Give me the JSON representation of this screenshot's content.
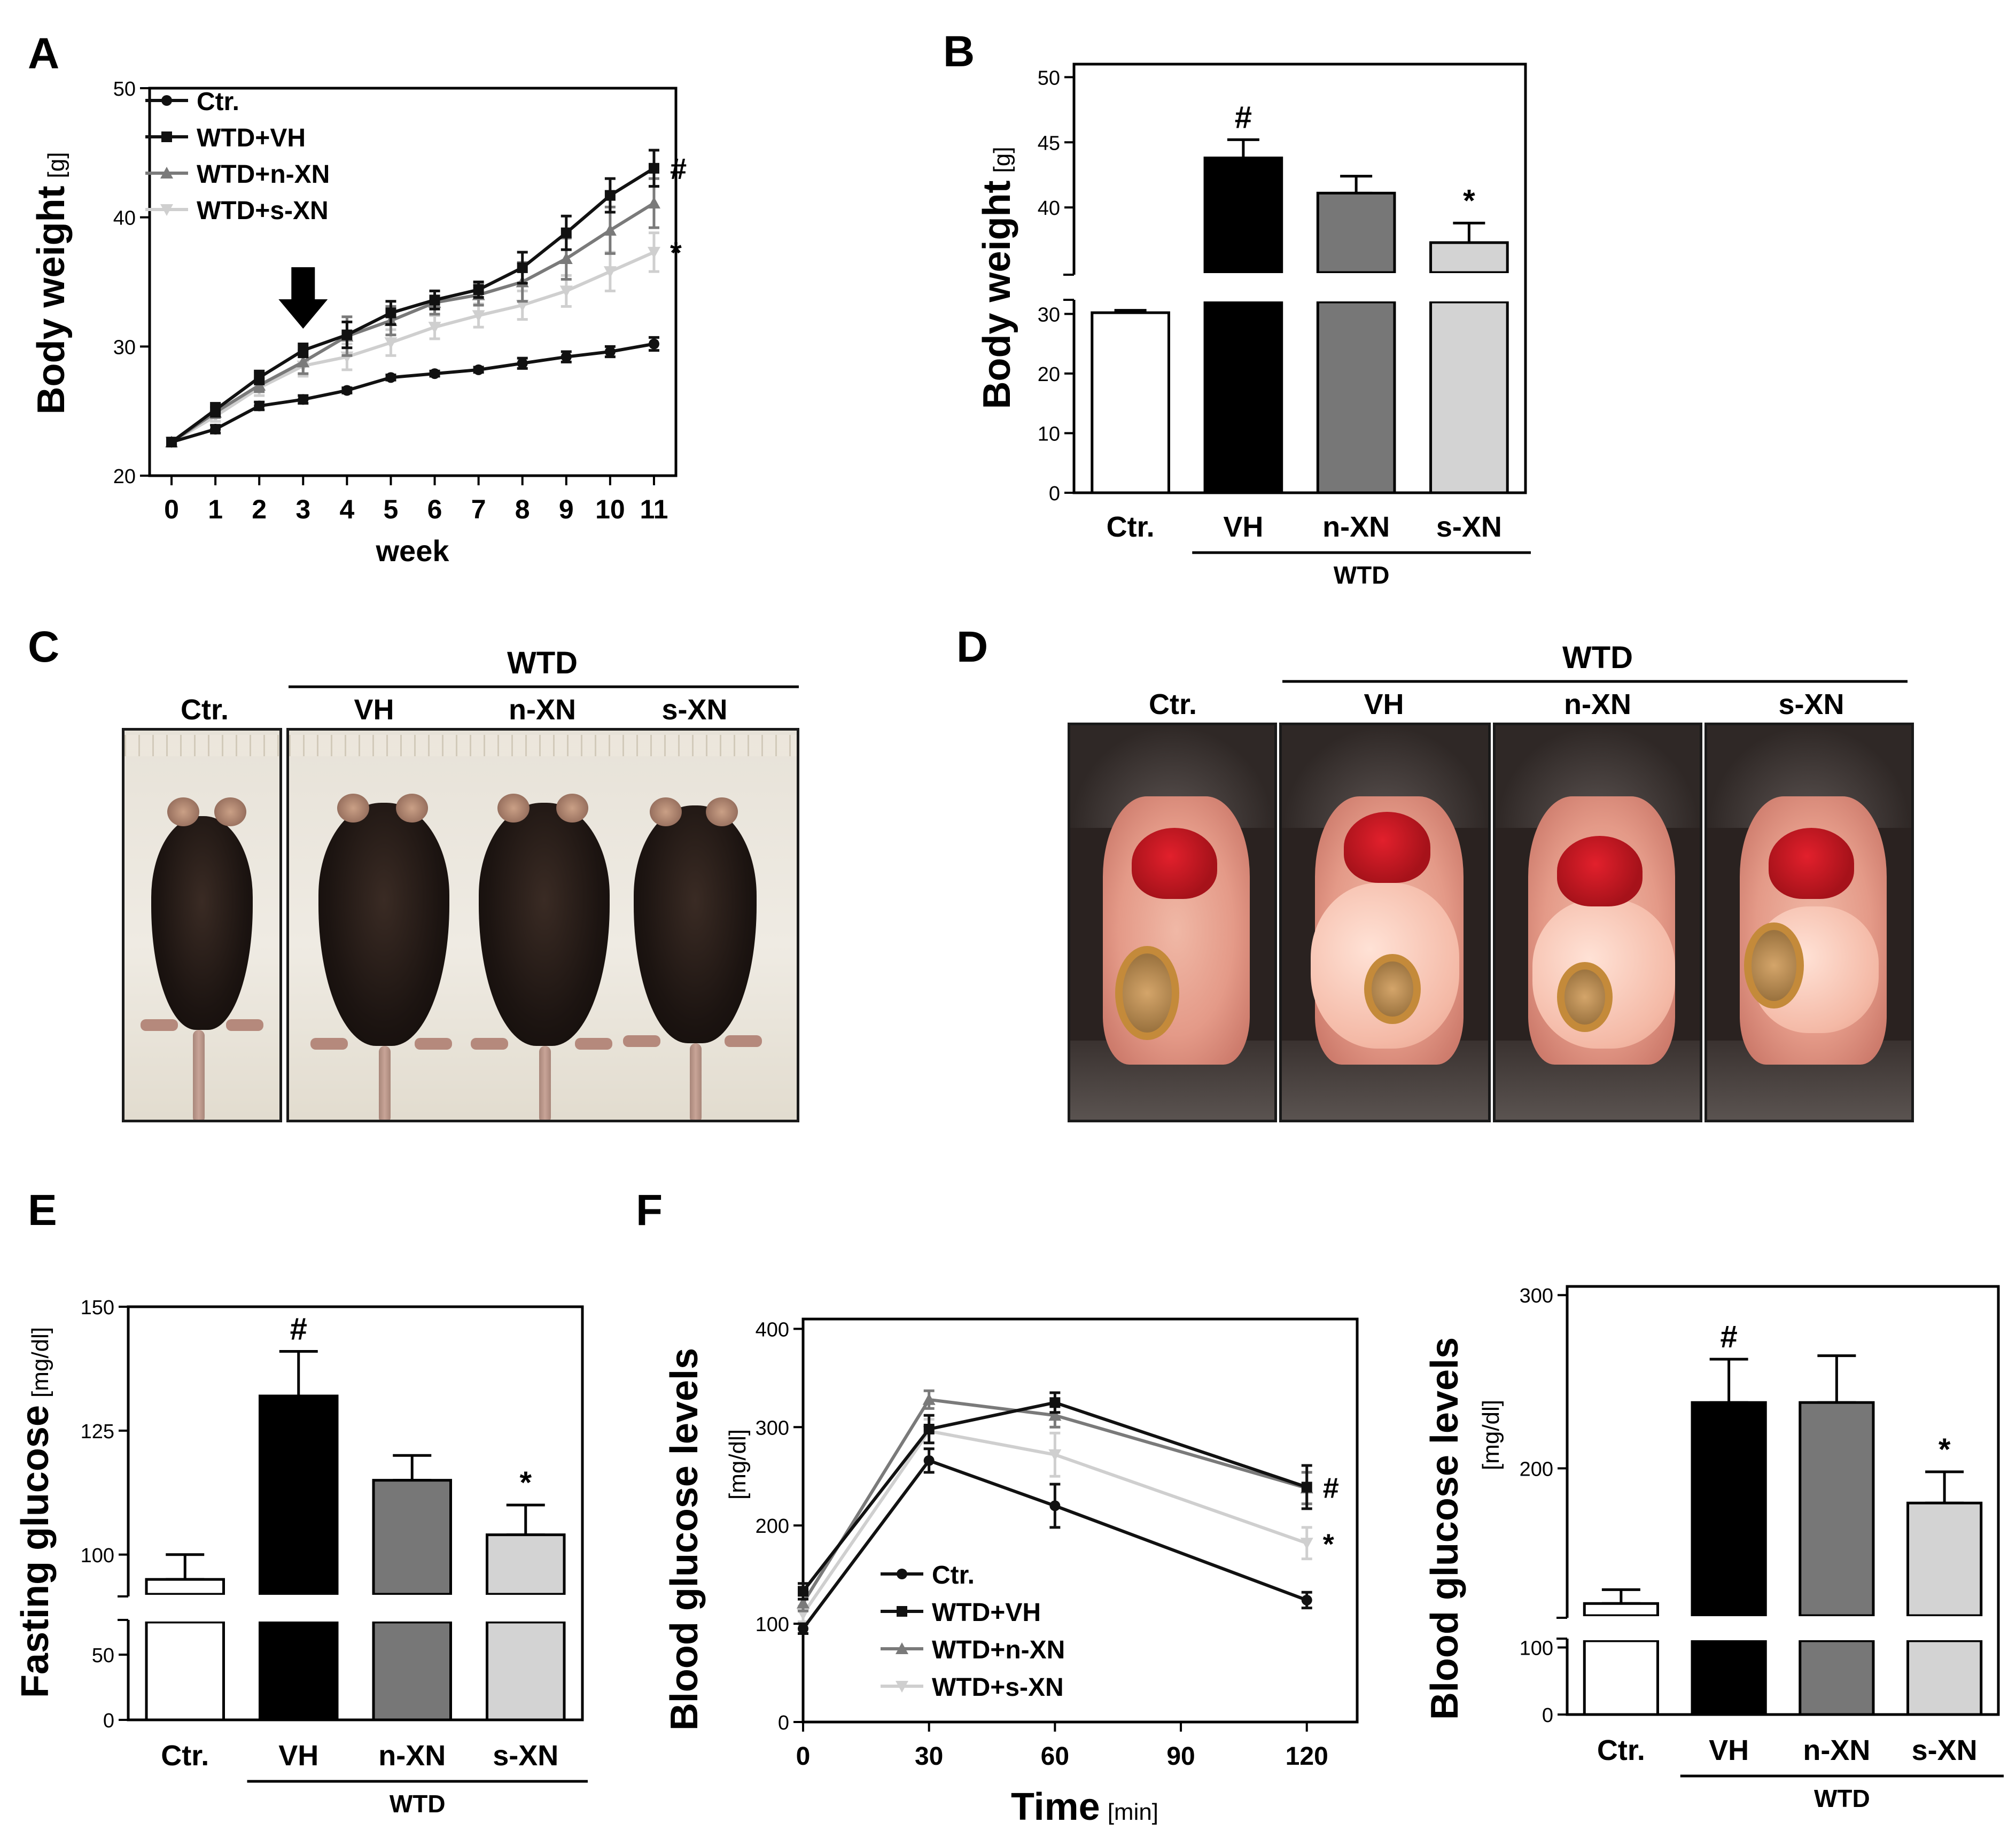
{
  "panels": {
    "a": "A",
    "b": "B",
    "c": "C",
    "d": "D",
    "e": "E",
    "f": "F"
  },
  "chart_data": [
    {
      "id": "A",
      "type": "line",
      "title": "",
      "xlabel": "week",
      "ylabel": "Body weight",
      "ylabel_unit": "[g]",
      "x": [
        0,
        1,
        2,
        3,
        4,
        5,
        6,
        7,
        8,
        9,
        10,
        11
      ],
      "xlim": [
        -0.5,
        11.5
      ],
      "ylim": [
        20,
        50
      ],
      "yticks": [
        20,
        30,
        40,
        50
      ],
      "arrow_at_week": 3,
      "series": [
        {
          "name": "Ctr.",
          "marker": "circle",
          "color": "#111111",
          "values": [
            22.6,
            23.6,
            25.4,
            25.9,
            26.6,
            27.6,
            27.9,
            28.2,
            28.7,
            29.2,
            29.6,
            30.2
          ],
          "err": [
            0.2,
            0.3,
            0.3,
            0.3,
            0.2,
            0.2,
            0.2,
            0.2,
            0.4,
            0.4,
            0.4,
            0.5
          ]
        },
        {
          "name": "WTD+VH",
          "marker": "square",
          "color": "#111111",
          "values": [
            22.6,
            25.1,
            27.6,
            29.7,
            30.9,
            32.6,
            33.6,
            34.4,
            36.1,
            38.8,
            41.7,
            43.8
          ],
          "err": [
            0.2,
            0.5,
            0.5,
            0.5,
            1.0,
            0.9,
            0.7,
            0.6,
            1.2,
            1.3,
            1.3,
            1.4
          ]
        },
        {
          "name": "WTD+n-XN",
          "marker": "triangle",
          "color": "#7a7a7a",
          "values": [
            22.6,
            24.9,
            27.0,
            28.8,
            30.8,
            32.0,
            33.4,
            34.0,
            35.0,
            36.8,
            39.0,
            41.1
          ],
          "err": [
            0.2,
            0.4,
            0.5,
            0.9,
            1.5,
            1.1,
            0.9,
            0.8,
            1.5,
            1.6,
            1.8,
            1.9
          ]
        },
        {
          "name": "WTD+s-XN",
          "marker": "triangle-down",
          "color": "#cfcfcf",
          "values": [
            22.6,
            24.6,
            26.8,
            28.5,
            29.2,
            30.3,
            31.5,
            32.4,
            33.2,
            34.3,
            35.8,
            37.3
          ],
          "err": [
            0.2,
            0.4,
            0.6,
            0.8,
            1.0,
            1.0,
            0.9,
            0.9,
            1.1,
            1.2,
            1.5,
            1.5
          ]
        }
      ],
      "annotations": [
        {
          "series": "WTD+VH",
          "text": "#"
        },
        {
          "series": "WTD+s-XN",
          "text": "*"
        }
      ]
    },
    {
      "id": "B",
      "type": "bar",
      "title": "",
      "xlabel": "",
      "ylabel": "Body weight",
      "ylabel_unit": "[g]",
      "categories": [
        "Ctr.",
        "VH",
        "n-XN",
        "s-XN"
      ],
      "group_label": "WTD",
      "values": [
        30.2,
        43.8,
        41.1,
        37.3
      ],
      "err": [
        0.4,
        1.4,
        1.3,
        1.5
      ],
      "colors": [
        "#ffffff",
        "#000000",
        "#777777",
        "#d3d3d3"
      ],
      "marks": [
        "",
        "#",
        "",
        "*"
      ],
      "lower_ylim": [
        0,
        32
      ],
      "lower_yticks": [
        0,
        10,
        20,
        30
      ],
      "upper_ylim": [
        35,
        51
      ],
      "upper_yticks": [
        40,
        45,
        50
      ]
    },
    {
      "id": "E",
      "type": "bar",
      "title": "",
      "xlabel": "",
      "ylabel": "Fasting glucose",
      "ylabel_unit": "[mg/dl]",
      "categories": [
        "Ctr.",
        "VH",
        "n-XN",
        "s-XN"
      ],
      "group_label": "WTD",
      "values": [
        95,
        132,
        115,
        104
      ],
      "err": [
        5,
        9,
        5,
        6
      ],
      "colors": [
        "#ffffff",
        "#000000",
        "#777777",
        "#d3d3d3"
      ],
      "marks": [
        "",
        "#",
        "",
        "*"
      ],
      "lower_ylim": [
        0,
        75
      ],
      "lower_yticks": [
        0,
        50
      ],
      "upper_ylim": [
        92,
        150
      ],
      "upper_yticks": [
        100,
        125,
        150
      ]
    },
    {
      "id": "F-left",
      "type": "line",
      "title": "",
      "xlabel": "Time",
      "xlabel_unit": "[min]",
      "ylabel": "Blood glucose levels",
      "ylabel_unit": "[mg/dl]",
      "x": [
        0,
        30,
        60,
        120
      ],
      "xticks": [
        0,
        30,
        60,
        90,
        120
      ],
      "xlim": [
        0,
        132
      ],
      "ylim": [
        0,
        410
      ],
      "yticks": [
        0,
        100,
        200,
        300,
        400
      ],
      "series": [
        {
          "name": "Ctr.",
          "marker": "circle",
          "color": "#111111",
          "values": [
            95,
            266,
            220,
            124
          ],
          "err": [
            5,
            12,
            22,
            8
          ]
        },
        {
          "name": "WTD+VH",
          "marker": "square",
          "color": "#111111",
          "values": [
            133,
            298,
            325,
            239
          ],
          "err": [
            8,
            14,
            10,
            22
          ]
        },
        {
          "name": "WTD+n-XN",
          "marker": "triangle",
          "color": "#7a7a7a",
          "values": [
            121,
            328,
            312,
            238
          ],
          "err": [
            8,
            9,
            12,
            16
          ]
        },
        {
          "name": "WTD+s-XN",
          "marker": "triangle-down",
          "color": "#cfcfcf",
          "values": [
            110,
            296,
            272,
            182
          ],
          "err": [
            8,
            12,
            22,
            16
          ]
        }
      ],
      "annotations": [
        {
          "series": "WTD+VH",
          "text": "#"
        },
        {
          "series": "WTD+s-XN",
          "text": "*"
        }
      ]
    },
    {
      "id": "F-right",
      "type": "bar",
      "title": "",
      "xlabel": "",
      "ylabel": "Blood glucose levels",
      "ylabel_unit": "[mg/dl]",
      "categories": [
        "Ctr.",
        "VH",
        "n-XN",
        "s-XN"
      ],
      "group_label": "WTD",
      "values": [
        122,
        238,
        238,
        180
      ],
      "err": [
        8,
        25,
        27,
        18
      ],
      "colors": [
        "#ffffff",
        "#000000",
        "#777777",
        "#d3d3d3"
      ],
      "marks": [
        "",
        "#",
        "",
        "*"
      ],
      "lower_ylim": [
        0,
        110
      ],
      "lower_yticks": [
        0,
        100
      ],
      "upper_ylim": [
        115,
        305
      ],
      "upper_yticks": [
        200,
        300
      ]
    }
  ],
  "photos_c": {
    "group": "WTD",
    "labels": [
      "Ctr.",
      "VH",
      "n-XN",
      "s-XN"
    ]
  },
  "photos_d": {
    "group": "WTD",
    "labels": [
      "Ctr.",
      "VH",
      "n-XN",
      "s-XN"
    ]
  }
}
